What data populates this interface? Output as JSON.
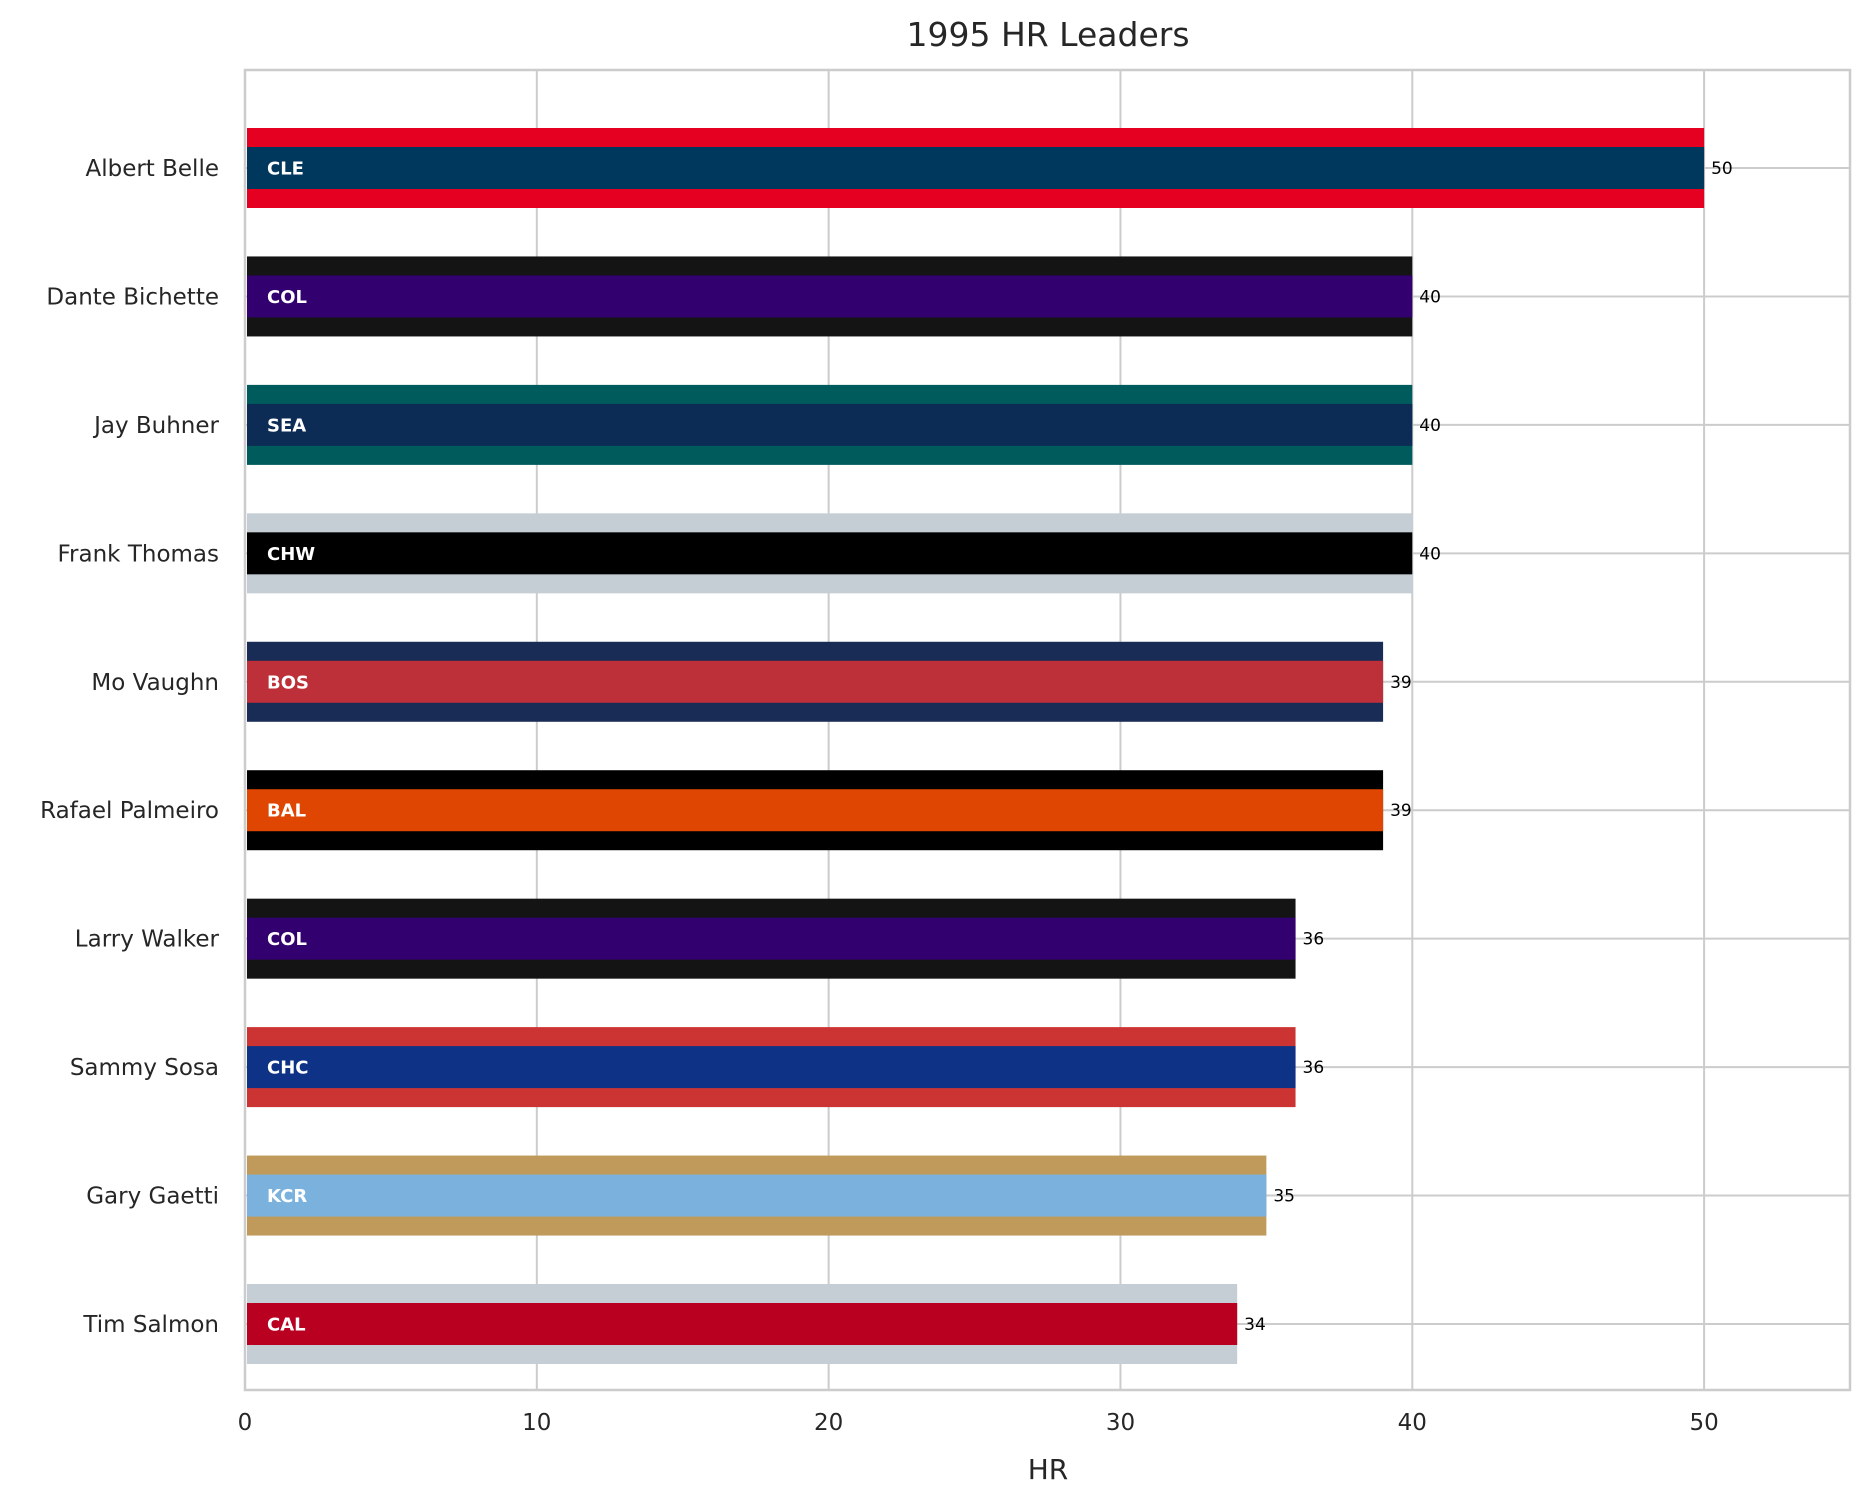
{
  "chart_data": {
    "type": "bar",
    "orientation": "horizontal",
    "title": "1995 HR Leaders",
    "xlabel": "HR",
    "ylabel": "",
    "xlim": [
      0,
      55
    ],
    "xticks": [
      0,
      10,
      20,
      30,
      40,
      50
    ],
    "grid": true,
    "categories": [
      "Albert Belle",
      "Dante Bichette",
      "Jay Buhner",
      "Frank Thomas",
      "Mo Vaughn",
      "Rafael Palmeiro",
      "Larry Walker",
      "Sammy Sosa",
      "Gary Gaetti",
      "Tim Salmon"
    ],
    "values": [
      50,
      40,
      40,
      40,
      39,
      39,
      36,
      36,
      35,
      34
    ],
    "teams": [
      "CLE",
      "COL",
      "SEA",
      "CHW",
      "BOS",
      "BAL",
      "COL",
      "CHC",
      "KCR",
      "CAL"
    ],
    "primary_colors": [
      "#00385D",
      "#33006F",
      "#0C2C56",
      "#000000",
      "#BD3039",
      "#DF4601",
      "#33006F",
      "#0E3386",
      "#7BB2DD",
      "#BA0021"
    ],
    "secondary_colors": [
      "#E50022",
      "#131413",
      "#005C5C",
      "#C4CED4",
      "#192C55",
      "#000000",
      "#131413",
      "#CC3433",
      "#C09A5B",
      "#C4CED4"
    ]
  }
}
